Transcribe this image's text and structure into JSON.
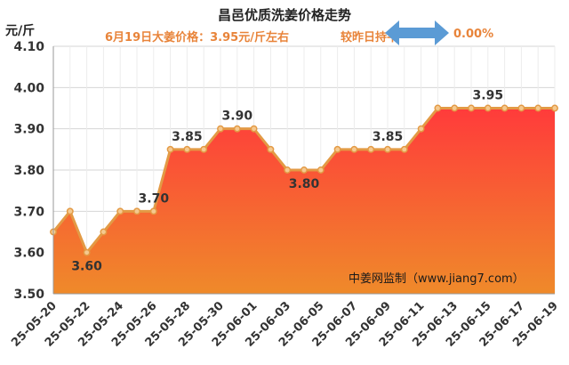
{
  "header": {
    "title": "昌邑优质洗姜价格走势",
    "unit": "元/斤",
    "price_text": "6月19日大姜价格：3.95元/斤左右",
    "change_label": "较昨日持平",
    "change_value": "0.00%",
    "arrow_icon": "double-arrow-icon"
  },
  "watermark": "中姜网监制（www.jiang7.com）",
  "colors": {
    "accent": "#e8843a",
    "line": "#e39a45",
    "arrow": "#5b9bd5",
    "fill_top": "#ff3b3b",
    "fill_bottom": "#ef8a2a"
  },
  "chart_data": {
    "type": "area",
    "title": "昌邑优质洗姜价格走势",
    "ylabel": "元/斤",
    "xlabel": "",
    "ylim": [
      3.5,
      4.1
    ],
    "yticks": [
      "3.50",
      "3.60",
      "3.70",
      "3.80",
      "3.90",
      "4.00",
      "4.10"
    ],
    "grid": true,
    "x": [
      "25-05-20",
      "25-05-21",
      "25-05-22",
      "25-05-23",
      "25-05-24",
      "25-05-25",
      "25-05-26",
      "25-05-27",
      "25-05-28",
      "25-05-29",
      "25-05-30",
      "25-05-31",
      "25-06-01",
      "25-06-02",
      "25-06-03",
      "25-06-04",
      "25-06-05",
      "25-06-06",
      "25-06-07",
      "25-06-08",
      "25-06-09",
      "25-06-10",
      "25-06-11",
      "25-06-12",
      "25-06-13",
      "25-06-14",
      "25-06-15",
      "25-06-16",
      "25-06-17",
      "25-06-18",
      "25-06-19"
    ],
    "xtick_labels": [
      "25-05-20",
      "25-05-22",
      "25-05-24",
      "25-05-26",
      "25-05-28",
      "25-05-30",
      "25-06-01",
      "25-06-03",
      "25-06-05",
      "25-06-07",
      "25-06-09",
      "25-06-11",
      "25-06-13",
      "25-06-15",
      "25-06-17",
      "25-06-19"
    ],
    "values": [
      3.65,
      3.7,
      3.6,
      3.65,
      3.7,
      3.7,
      3.7,
      3.85,
      3.85,
      3.85,
      3.9,
      3.9,
      3.9,
      3.85,
      3.8,
      3.8,
      3.8,
      3.85,
      3.85,
      3.85,
      3.85,
      3.85,
      3.9,
      3.95,
      3.95,
      3.95,
      3.95,
      3.95,
      3.95,
      3.95,
      3.95
    ],
    "data_labels": [
      {
        "index": 2,
        "text": "3.60",
        "position": "below"
      },
      {
        "index": 6,
        "text": "3.70",
        "position": "above"
      },
      {
        "index": 8,
        "text": "3.85",
        "position": "above"
      },
      {
        "index": 11,
        "text": "3.90",
        "position": "above"
      },
      {
        "index": 15,
        "text": "3.80",
        "position": "below"
      },
      {
        "index": 20,
        "text": "3.85",
        "position": "above"
      },
      {
        "index": 26,
        "text": "3.95",
        "position": "above"
      }
    ]
  }
}
